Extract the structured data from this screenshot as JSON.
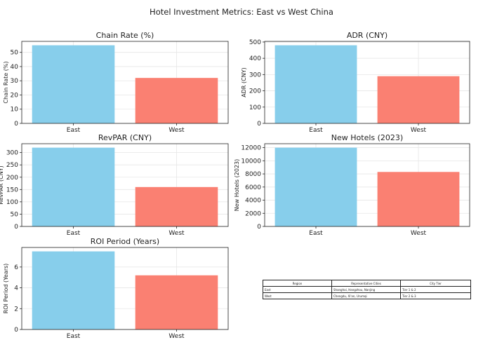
{
  "suptitle": "Hotel Investment Metrics: East vs West China",
  "colors": {
    "east": "#87CEEB",
    "west": "#FA8072",
    "axis": "#222222",
    "grid": "#e6e6e6"
  },
  "chart_data": [
    {
      "type": "bar",
      "title": "Chain Rate (%)",
      "categories": [
        "East",
        "West"
      ],
      "values": [
        55,
        32
      ],
      "ylabel": "Chain Rate (%)",
      "ylim": [
        0,
        57.75
      ],
      "yticks": [
        "0",
        "10",
        "20",
        "30",
        "40",
        "50"
      ],
      "grid": true
    },
    {
      "type": "bar",
      "title": "ADR (CNY)",
      "categories": [
        "East",
        "West"
      ],
      "values": [
        480,
        290
      ],
      "ylabel": "ADR (CNY)",
      "ylim": [
        0,
        504
      ],
      "yticks": [
        "0",
        "100",
        "200",
        "300",
        "400",
        "500"
      ],
      "grid": true
    },
    {
      "type": "bar",
      "title": "RevPAR (CNY)",
      "categories": [
        "East",
        "West"
      ],
      "values": [
        320,
        160
      ],
      "ylabel": "RevPAR (CNY)",
      "ylim": [
        0,
        336
      ],
      "yticks": [
        "0",
        "50",
        "100",
        "150",
        "200",
        "250",
        "300"
      ],
      "grid": true
    },
    {
      "type": "bar",
      "title": "New Hotels (2023)",
      "categories": [
        "East",
        "West"
      ],
      "values": [
        12000,
        8300
      ],
      "ylabel": "New Hotels (2023)",
      "ylim": [
        0,
        12600
      ],
      "yticks": [
        "0",
        "2000",
        "4000",
        "6000",
        "8000",
        "10000",
        "12000"
      ],
      "grid": true
    },
    {
      "type": "bar",
      "title": "ROI Period (Years)",
      "categories": [
        "East",
        "West"
      ],
      "values": [
        7.5,
        5.2
      ],
      "ylabel": "ROI Period (Years)",
      "ylim": [
        0,
        7.875
      ],
      "yticks": [
        "0",
        "2",
        "4",
        "6"
      ],
      "grid": true
    },
    {
      "type": "table",
      "columns": [
        "Region",
        "Representative Cities",
        "City Tier"
      ],
      "rows": [
        [
          "East",
          "Shanghai, Hangzhou, Nanjing",
          "Tier 1 & 2"
        ],
        [
          "West",
          "Chengdu, Xi'an, Urumqi",
          "Tier 2 & 3"
        ]
      ]
    }
  ]
}
